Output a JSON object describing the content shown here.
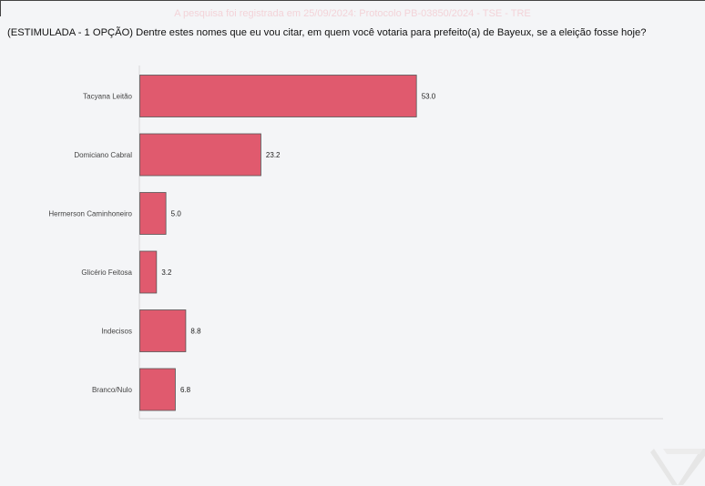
{
  "header": {
    "registration_text": "A pesquisa foi registrada em 25/09/2024: Protocolo PB-03850/2024 - TSE - TRE",
    "question": "(ESTIMULADA - 1 OPÇÃO) Dentre estes nomes que eu vou citar, em quem você votaria para prefeito(a) de Bayeux, se a eleição fosse hoje?"
  },
  "colors": {
    "bar_fill": "#e05a6e",
    "bar_stroke": "#555555",
    "axis": "#d8d8d8"
  },
  "chart_data": {
    "type": "bar",
    "orientation": "horizontal",
    "categories": [
      "Tacyana Leitão",
      "Domiciano Cabral",
      "Hermerson Caminhoneiro",
      "Glicério Feitosa",
      "Indecisos",
      "Branco/Nulo"
    ],
    "values": [
      53.0,
      23.2,
      5.0,
      3.2,
      8.8,
      6.8
    ],
    "value_labels": [
      "53.0",
      "23.2",
      "5.0",
      "3.2",
      "8.8",
      "6.8"
    ],
    "xlim": [
      0,
      100
    ],
    "grid": false,
    "legend": "none"
  }
}
